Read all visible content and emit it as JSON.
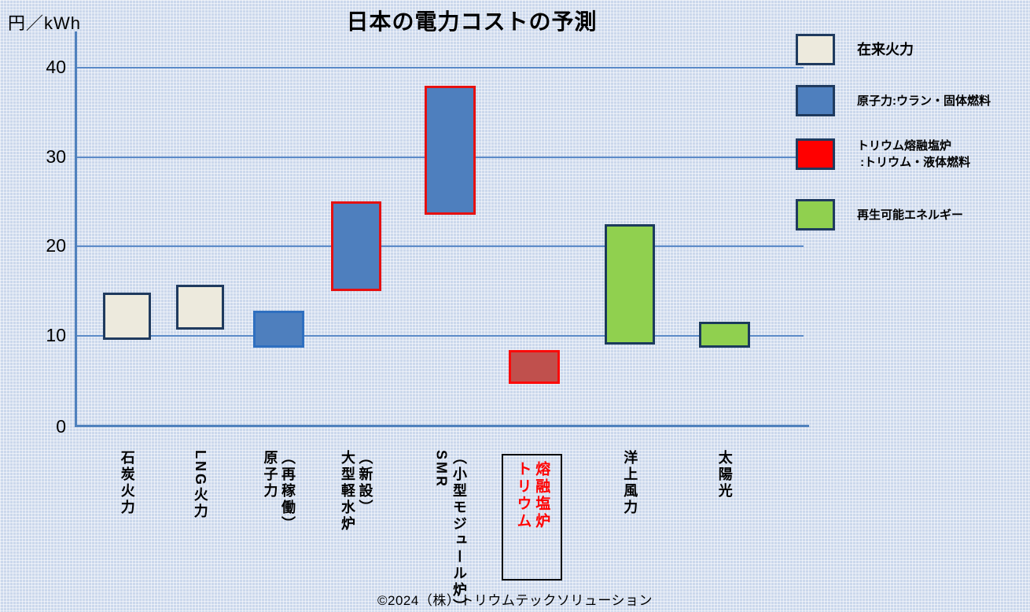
{
  "title": "日本の電力コストの予測",
  "y_axis": {
    "unit_label": "円／kWh",
    "tick_labels": [
      "40",
      "30",
      "20",
      "10",
      "0"
    ]
  },
  "footer": {
    "copyright": "©2024（株）トリウムテックソリューション"
  },
  "colors": {
    "background": "#cbd8ec",
    "grid_paper_line": "#ffffff",
    "chart_gridline": "#5b8ac8",
    "axis": "#4f81bd",
    "conventional_fill": "#edeadd",
    "nuclear_fill": "#4e7fbe",
    "thorium_fill": "#c0504d",
    "renewable_fill": "#90d04f",
    "navy_border": "#1f3a5e",
    "blue_border": "#2e6fc0",
    "red_border": "#e61010",
    "legend_red": "#ff0000",
    "highlight_text": "#ff0000"
  },
  "legend": {
    "items": [
      {
        "label_lines": [
          "在来火力"
        ],
        "fill": "#edeadd",
        "border": "#1f3a5e"
      },
      {
        "label_lines": [
          "原子力:ウラン・固体燃料"
        ],
        "fill": "#4e7fbe",
        "border": "#1f3a5e"
      },
      {
        "label_lines": [
          "トリウム熔融塩炉",
          " :トリウム・液体燃料"
        ],
        "fill": "#ff0000",
        "border": "#1f3a5e"
      },
      {
        "label_lines": [
          "再生可能エネルギー"
        ],
        "fill": "#90d04f",
        "border": "#1f3a5e"
      }
    ]
  },
  "chart_data": {
    "type": "bar",
    "subtype": "floating-range-bars",
    "title": "日本の電力コストの予測",
    "ylabel": "円／kWh",
    "xlabel": "",
    "ylim": [
      0,
      42
    ],
    "yticks": [
      0,
      10,
      20,
      30,
      40
    ],
    "grid": true,
    "legend_position": "top-right",
    "categories": [
      "石炭火力",
      "LNG火力",
      "原子力（再稼働）",
      "大型軽水炉（新設）",
      "SMR（小型モジュール炉）",
      "トリウム熔融塩炉",
      "洋上風力",
      "太陽光"
    ],
    "bars": [
      {
        "category": "石炭火力",
        "label_lines": [
          "石炭火力"
        ],
        "low": 9.5,
        "high": 14.8,
        "group": "在来火力",
        "fill": "#edeadd",
        "border": "#1f3a5e"
      },
      {
        "category": "LNG火力",
        "label_lines": [
          "LNG火力"
        ],
        "low": 10.7,
        "high": 15.7,
        "group": "在来火力",
        "fill": "#edeadd",
        "border": "#1f3a5e"
      },
      {
        "category": "原子力（再稼働）",
        "label_lines": [
          "原子力",
          "（再稼働）"
        ],
        "low": 8.6,
        "high": 12.8,
        "group": "原子力:ウラン・固体燃料",
        "fill": "#4e7fbe",
        "border": "#2e6fc0"
      },
      {
        "category": "大型軽水炉（新設）",
        "label_lines": [
          "大型軽水炉",
          "（新設）"
        ],
        "low": 15,
        "high": 25,
        "group": "原子力:ウラン・固体燃料",
        "fill": "#4e7fbe",
        "border": "#e61010"
      },
      {
        "category": "SMR（小型モジュール炉）",
        "label_lines": [
          "SMR",
          "（小型モジュール炉）"
        ],
        "low": 23.5,
        "high": 38,
        "group": "原子力:ウラン・固体燃料",
        "fill": "#4e7fbe",
        "border": "#e61010"
      },
      {
        "category": "トリウム熔融塩炉",
        "label_lines": [
          "トリウム",
          "熔融塩炉"
        ],
        "low": 4.6,
        "high": 8.4,
        "group": "トリウム熔融塩炉:トリウム・液体燃料",
        "fill": "#c0504d",
        "border": "#fa0a0a",
        "label_color": "#ff0000",
        "label_boxed": true
      },
      {
        "category": "洋上風力",
        "label_lines": [
          "洋上風力"
        ],
        "low": 9,
        "high": 22.5,
        "group": "再生可能エネルギー",
        "fill": "#90d04f",
        "border": "#1b3a5c"
      },
      {
        "category": "太陽光",
        "label_lines": [
          "太陽光"
        ],
        "low": 8.6,
        "high": 11.5,
        "group": "再生可能エネルギー",
        "fill": "#90d04f",
        "border": "#1b3a5c"
      }
    ]
  }
}
